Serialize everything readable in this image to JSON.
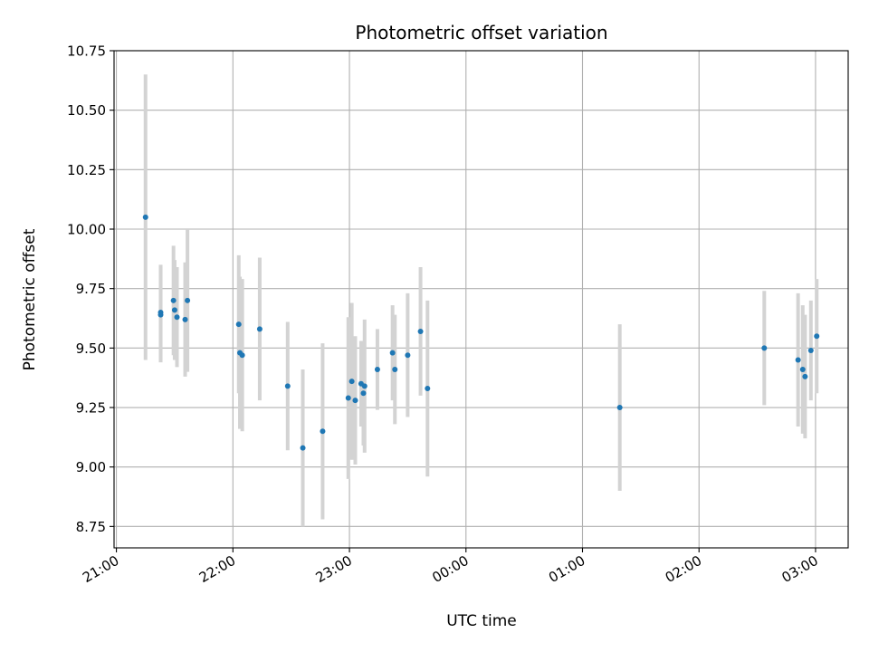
{
  "chart_data": {
    "type": "scatter",
    "title": "Photometric offset variation",
    "xlabel": "UTC time",
    "ylabel": "Photometric offset",
    "x_unit": "time of night (hours, next day > 24)",
    "xlim": [
      20.98,
      27.28
    ],
    "ylim": [
      8.66,
      10.75
    ],
    "yticks": [
      8.75,
      9.0,
      9.25,
      9.5,
      9.75,
      10.0,
      10.25,
      10.5,
      10.75
    ],
    "ytick_labels": [
      "8.75",
      "9.00",
      "9.25",
      "9.50",
      "9.75",
      "10.00",
      "10.25",
      "10.50",
      "10.75"
    ],
    "xticks": [
      21,
      22,
      23,
      24,
      25,
      26,
      27
    ],
    "xtick_labels": [
      "21:00",
      "22:00",
      "23:00",
      "00:00",
      "01:00",
      "02:00",
      "03:00"
    ],
    "grid": true,
    "legend": "none",
    "colors": {
      "point": "#1f77b4",
      "errorbar": "#d3d3d3",
      "grid": "#b0b0b0"
    },
    "points": [
      {
        "t": 21.25,
        "y": 10.05,
        "err": 0.6
      },
      {
        "t": 21.38,
        "y": 9.65,
        "err": 0.2
      },
      {
        "t": 21.38,
        "y": 9.64,
        "err": 0.2
      },
      {
        "t": 21.49,
        "y": 9.7,
        "err": 0.23
      },
      {
        "t": 21.5,
        "y": 9.66,
        "err": 0.21
      },
      {
        "t": 21.52,
        "y": 9.63,
        "err": 0.21
      },
      {
        "t": 21.59,
        "y": 9.62,
        "err": 0.24
      },
      {
        "t": 21.61,
        "y": 9.7,
        "err": 0.3
      },
      {
        "t": 22.05,
        "y": 9.6,
        "err": 0.29
      },
      {
        "t": 22.06,
        "y": 9.48,
        "err": 0.32
      },
      {
        "t": 22.08,
        "y": 9.47,
        "err": 0.32
      },
      {
        "t": 22.23,
        "y": 9.58,
        "err": 0.3
      },
      {
        "t": 22.47,
        "y": 9.34,
        "err": 0.27
      },
      {
        "t": 22.6,
        "y": 9.08,
        "err": 0.33
      },
      {
        "t": 22.77,
        "y": 9.15,
        "err": 0.37
      },
      {
        "t": 22.99,
        "y": 9.29,
        "err": 0.34
      },
      {
        "t": 23.02,
        "y": 9.36,
        "err": 0.33
      },
      {
        "t": 23.05,
        "y": 9.28,
        "err": 0.27
      },
      {
        "t": 23.1,
        "y": 9.35,
        "err": 0.18
      },
      {
        "t": 23.12,
        "y": 9.31,
        "err": 0.22
      },
      {
        "t": 23.13,
        "y": 9.34,
        "err": 0.28
      },
      {
        "t": 23.24,
        "y": 9.41,
        "err": 0.17
      },
      {
        "t": 23.37,
        "y": 9.48,
        "err": 0.2
      },
      {
        "t": 23.39,
        "y": 9.41,
        "err": 0.23
      },
      {
        "t": 23.5,
        "y": 9.47,
        "err": 0.26
      },
      {
        "t": 23.61,
        "y": 9.57,
        "err": 0.27
      },
      {
        "t": 23.67,
        "y": 9.33,
        "err": 0.37
      },
      {
        "t": 25.32,
        "y": 9.25,
        "err": 0.35
      },
      {
        "t": 26.56,
        "y": 9.5,
        "err": 0.24
      },
      {
        "t": 26.85,
        "y": 9.45,
        "err": 0.28
      },
      {
        "t": 26.89,
        "y": 9.41,
        "err": 0.27
      },
      {
        "t": 26.91,
        "y": 9.38,
        "err": 0.26
      },
      {
        "t": 26.96,
        "y": 9.49,
        "err": 0.21
      },
      {
        "t": 27.01,
        "y": 9.55,
        "err": 0.24
      }
    ]
  }
}
